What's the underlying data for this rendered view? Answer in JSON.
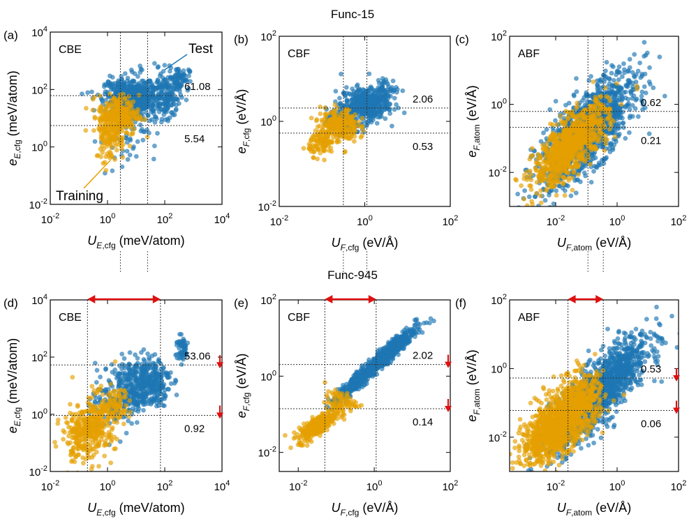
{
  "figure": {
    "group_titles": [
      "Func-15",
      "Func-945"
    ],
    "colors": {
      "test": "#1f77b4",
      "training": "#e5a000",
      "arrow": "#e01010",
      "guide": "#555555"
    },
    "legend": {
      "test": "Test",
      "training": "Training"
    },
    "guide_lines": {
      "enabled": true
    }
  },
  "chart_data": [
    {
      "type": "scatter",
      "panel": "(a)",
      "tag": "CBE",
      "xlabel": {
        "main": "U",
        "sub1": "E",
        "sub2": ",cfg",
        "unit": " (meV/atom)"
      },
      "ylabel": {
        "main": "e",
        "sub1": "E",
        "sub2": ",cfg",
        "unit": " (meV/atom)"
      },
      "xlim": [
        -2,
        4
      ],
      "ylim": [
        -2,
        4
      ],
      "xticks": [
        -2,
        0,
        2,
        4
      ],
      "yticks": [
        -2,
        0,
        2,
        4
      ],
      "vlines": [
        0.45,
        1.4
      ],
      "hlines": [
        1.785,
        0.744
      ],
      "hline_labels": [
        "61.08",
        "5.54"
      ],
      "series": [
        {
          "name": "Test",
          "clusters": [
            {
              "cx": 0.8,
              "cy": 1.8,
              "sx": 0.45,
              "sy": 0.3,
              "n": 380
            },
            {
              "cx": 1.3,
              "cy": 1.6,
              "sx": 0.4,
              "sy": 0.45,
              "n": 220
            },
            {
              "cx": 2.1,
              "cy": 1.8,
              "sx": 0.22,
              "sy": 0.4,
              "n": 120
            },
            {
              "cx": 2.5,
              "cy": 2.4,
              "sx": 0.18,
              "sy": 0.2,
              "n": 70
            },
            {
              "cx": 0.5,
              "cy": 0.2,
              "sx": 0.4,
              "sy": 0.6,
              "n": 40
            }
          ]
        },
        {
          "name": "Training",
          "clusters": [
            {
              "cx": 0.4,
              "cy": 1.1,
              "sx": 0.35,
              "sy": 0.35,
              "n": 260
            },
            {
              "cx": 0.1,
              "cy": 0.4,
              "sx": 0.25,
              "sy": 0.45,
              "n": 120
            }
          ]
        }
      ]
    },
    {
      "type": "scatter",
      "panel": "(b)",
      "tag": "CBF",
      "xlabel": {
        "main": "U",
        "sub1": "F",
        "sub2": ",cfg",
        "unit": " (eV/Å)"
      },
      "ylabel": {
        "main": "e",
        "sub1": "F",
        "sub2": ",cfg",
        "unit": " (eV/Å)"
      },
      "xlim": [
        -2,
        2
      ],
      "ylim": [
        -2,
        2
      ],
      "xticks": [
        -2,
        0,
        2
      ],
      "yticks": [
        -2,
        0,
        2
      ],
      "vlines": [
        -0.5,
        0.05
      ],
      "hlines": [
        0.314,
        -0.276
      ],
      "hline_labels": [
        "2.06",
        "0.53"
      ],
      "series": [
        {
          "name": "Test",
          "clusters": [
            {
              "cx": 0.0,
              "cy": 0.4,
              "sx": 0.28,
              "sy": 0.2,
              "n": 380
            },
            {
              "cx": -0.5,
              "cy": 0.0,
              "sx": 0.2,
              "sy": 0.15,
              "n": 140
            },
            {
              "cx": 0.5,
              "cy": 0.75,
              "sx": 0.15,
              "sy": 0.12,
              "n": 60
            }
          ]
        },
        {
          "name": "Training",
          "clusters": [
            {
              "cx": -0.6,
              "cy": -0.1,
              "sx": 0.22,
              "sy": 0.2,
              "n": 240
            },
            {
              "cx": -1.0,
              "cy": -0.5,
              "sx": 0.15,
              "sy": 0.15,
              "n": 100
            }
          ]
        }
      ]
    },
    {
      "type": "scatter",
      "panel": "(c)",
      "tag": "ABF",
      "xlabel": {
        "main": "U",
        "sub1": "F",
        "sub2": ",atom",
        "unit": " (eV/Å)"
      },
      "ylabel": {
        "main": "e",
        "sub1": "F",
        "sub2": ",atom",
        "unit": " (eV/Å)"
      },
      "xlim": [
        -3.5,
        2
      ],
      "ylim": [
        -3,
        2
      ],
      "xticks": [
        -2,
        0,
        2
      ],
      "yticks": [
        -2,
        0,
        2
      ],
      "vlines": [
        -0.95,
        -0.45
      ],
      "hlines": [
        -0.208,
        -0.678
      ],
      "hline_labels": [
        "0.62",
        "0.21"
      ],
      "series": [
        {
          "name": "Test",
          "clusters": [
            {
              "cx": -1.0,
              "cy": -0.8,
              "sx": 0.8,
              "sy": 0.55,
              "n": 1300,
              "diag": 0.78
            }
          ]
        },
        {
          "name": "Training",
          "clusters": [
            {
              "cx": -1.5,
              "cy": -1.2,
              "sx": 0.6,
              "sy": 0.4,
              "n": 900,
              "diag": 0.75
            }
          ]
        }
      ]
    },
    {
      "type": "scatter",
      "panel": "(d)",
      "tag": "CBE",
      "xlabel": {
        "main": "U",
        "sub1": "E",
        "sub2": ",cfg",
        "unit": " (meV/atom)"
      },
      "ylabel": {
        "main": "e",
        "sub1": "E",
        "sub2": ",cfg",
        "unit": " (meV/atom)"
      },
      "xlim": [
        -2,
        4
      ],
      "ylim": [
        -2,
        4
      ],
      "xticks": [
        -2,
        0,
        2,
        4
      ],
      "yticks": [
        -2,
        0,
        2,
        4
      ],
      "vlines": [
        -0.7,
        1.85
      ],
      "hlines": [
        1.725,
        -0.036
      ],
      "hline_labels": [
        "53.06",
        "0.92"
      ],
      "span_arrow": [
        -0.7,
        1.85
      ],
      "down_arrows": true,
      "series": [
        {
          "name": "Test",
          "clusters": [
            {
              "cx": 1.0,
              "cy": 1.0,
              "sx": 0.45,
              "sy": 0.45,
              "n": 320
            },
            {
              "cx": 1.6,
              "cy": 1.2,
              "sx": 0.3,
              "sy": 0.45,
              "n": 160
            },
            {
              "cx": 2.6,
              "cy": 2.3,
              "sx": 0.12,
              "sy": 0.22,
              "n": 60
            },
            {
              "cx": 0.2,
              "cy": 0.3,
              "sx": 0.4,
              "sy": 0.5,
              "n": 90
            }
          ]
        },
        {
          "name": "Training",
          "clusters": [
            {
              "cx": -0.4,
              "cy": -0.3,
              "sx": 0.35,
              "sy": 0.5,
              "n": 260
            },
            {
              "cx": -1.0,
              "cy": -0.8,
              "sx": 0.3,
              "sy": 0.45,
              "n": 150
            },
            {
              "cx": 0.3,
              "cy": 0.3,
              "sx": 0.25,
              "sy": 0.3,
              "n": 60
            }
          ]
        }
      ]
    },
    {
      "type": "scatter",
      "panel": "(e)",
      "tag": "CBF",
      "xlabel": {
        "main": "U",
        "sub1": "F",
        "sub2": ",cfg",
        "unit": " (eV/Å)"
      },
      "ylabel": {
        "main": "e",
        "sub1": "F",
        "sub2": ",cfg",
        "unit": " (eV/Å)"
      },
      "xlim": [
        -2.5,
        2
      ],
      "ylim": [
        -2.5,
        2
      ],
      "xticks": [
        -2,
        0,
        2
      ],
      "yticks": [
        -2,
        0,
        2
      ],
      "vlines": [
        -1.3,
        0.05
      ],
      "hlines": [
        0.305,
        -0.854
      ],
      "hline_labels": [
        "2.02",
        "0.14"
      ],
      "span_arrow": [
        -1.3,
        0.05
      ],
      "down_arrows": true,
      "series": [
        {
          "name": "Test",
          "clusters": [
            {
              "cx": 0.2,
              "cy": 0.45,
              "sx": 0.45,
              "sy": 0.12,
              "n": 700,
              "diag": 0.85
            },
            {
              "cx": -0.6,
              "cy": -0.3,
              "sx": 0.25,
              "sy": 0.12,
              "n": 150,
              "diag": 0.85
            }
          ]
        },
        {
          "name": "Training",
          "clusters": [
            {
              "cx": -1.5,
              "cy": -1.3,
              "sx": 0.25,
              "sy": 0.12,
              "n": 320,
              "diag": 0.6
            },
            {
              "cx": -0.9,
              "cy": -0.7,
              "sx": 0.2,
              "sy": 0.15,
              "n": 80
            }
          ]
        }
      ]
    },
    {
      "type": "scatter",
      "panel": "(f)",
      "tag": "ABF",
      "xlabel": {
        "main": "U",
        "sub1": "F",
        "sub2": ",atom",
        "unit": " (eV/Å)"
      },
      "ylabel": {
        "main": "e",
        "sub1": "F",
        "sub2": ",atom",
        "unit": " (eV/Å)"
      },
      "xlim": [
        -3.5,
        2
      ],
      "ylim": [
        -3,
        2
      ],
      "xticks": [
        -2,
        0,
        2
      ],
      "yticks": [
        -2,
        0,
        2
      ],
      "vlines": [
        -1.6,
        -0.45
      ],
      "hlines": [
        -0.276,
        -1.222
      ],
      "hline_labels": [
        "0.53",
        "0.06"
      ],
      "span_arrow": [
        -1.6,
        -0.45
      ],
      "down_arrows": true,
      "series": [
        {
          "name": "Test",
          "clusters": [
            {
              "cx": -0.6,
              "cy": -0.7,
              "sx": 0.8,
              "sy": 0.45,
              "n": 1400,
              "diag": 0.82
            }
          ]
        },
        {
          "name": "Training",
          "clusters": [
            {
              "cx": -2.0,
              "cy": -1.7,
              "sx": 0.55,
              "sy": 0.4,
              "n": 1000,
              "diag": 0.55
            },
            {
              "cx": -1.2,
              "cy": -0.9,
              "sx": 0.4,
              "sy": 0.4,
              "n": 300
            }
          ]
        }
      ]
    }
  ]
}
